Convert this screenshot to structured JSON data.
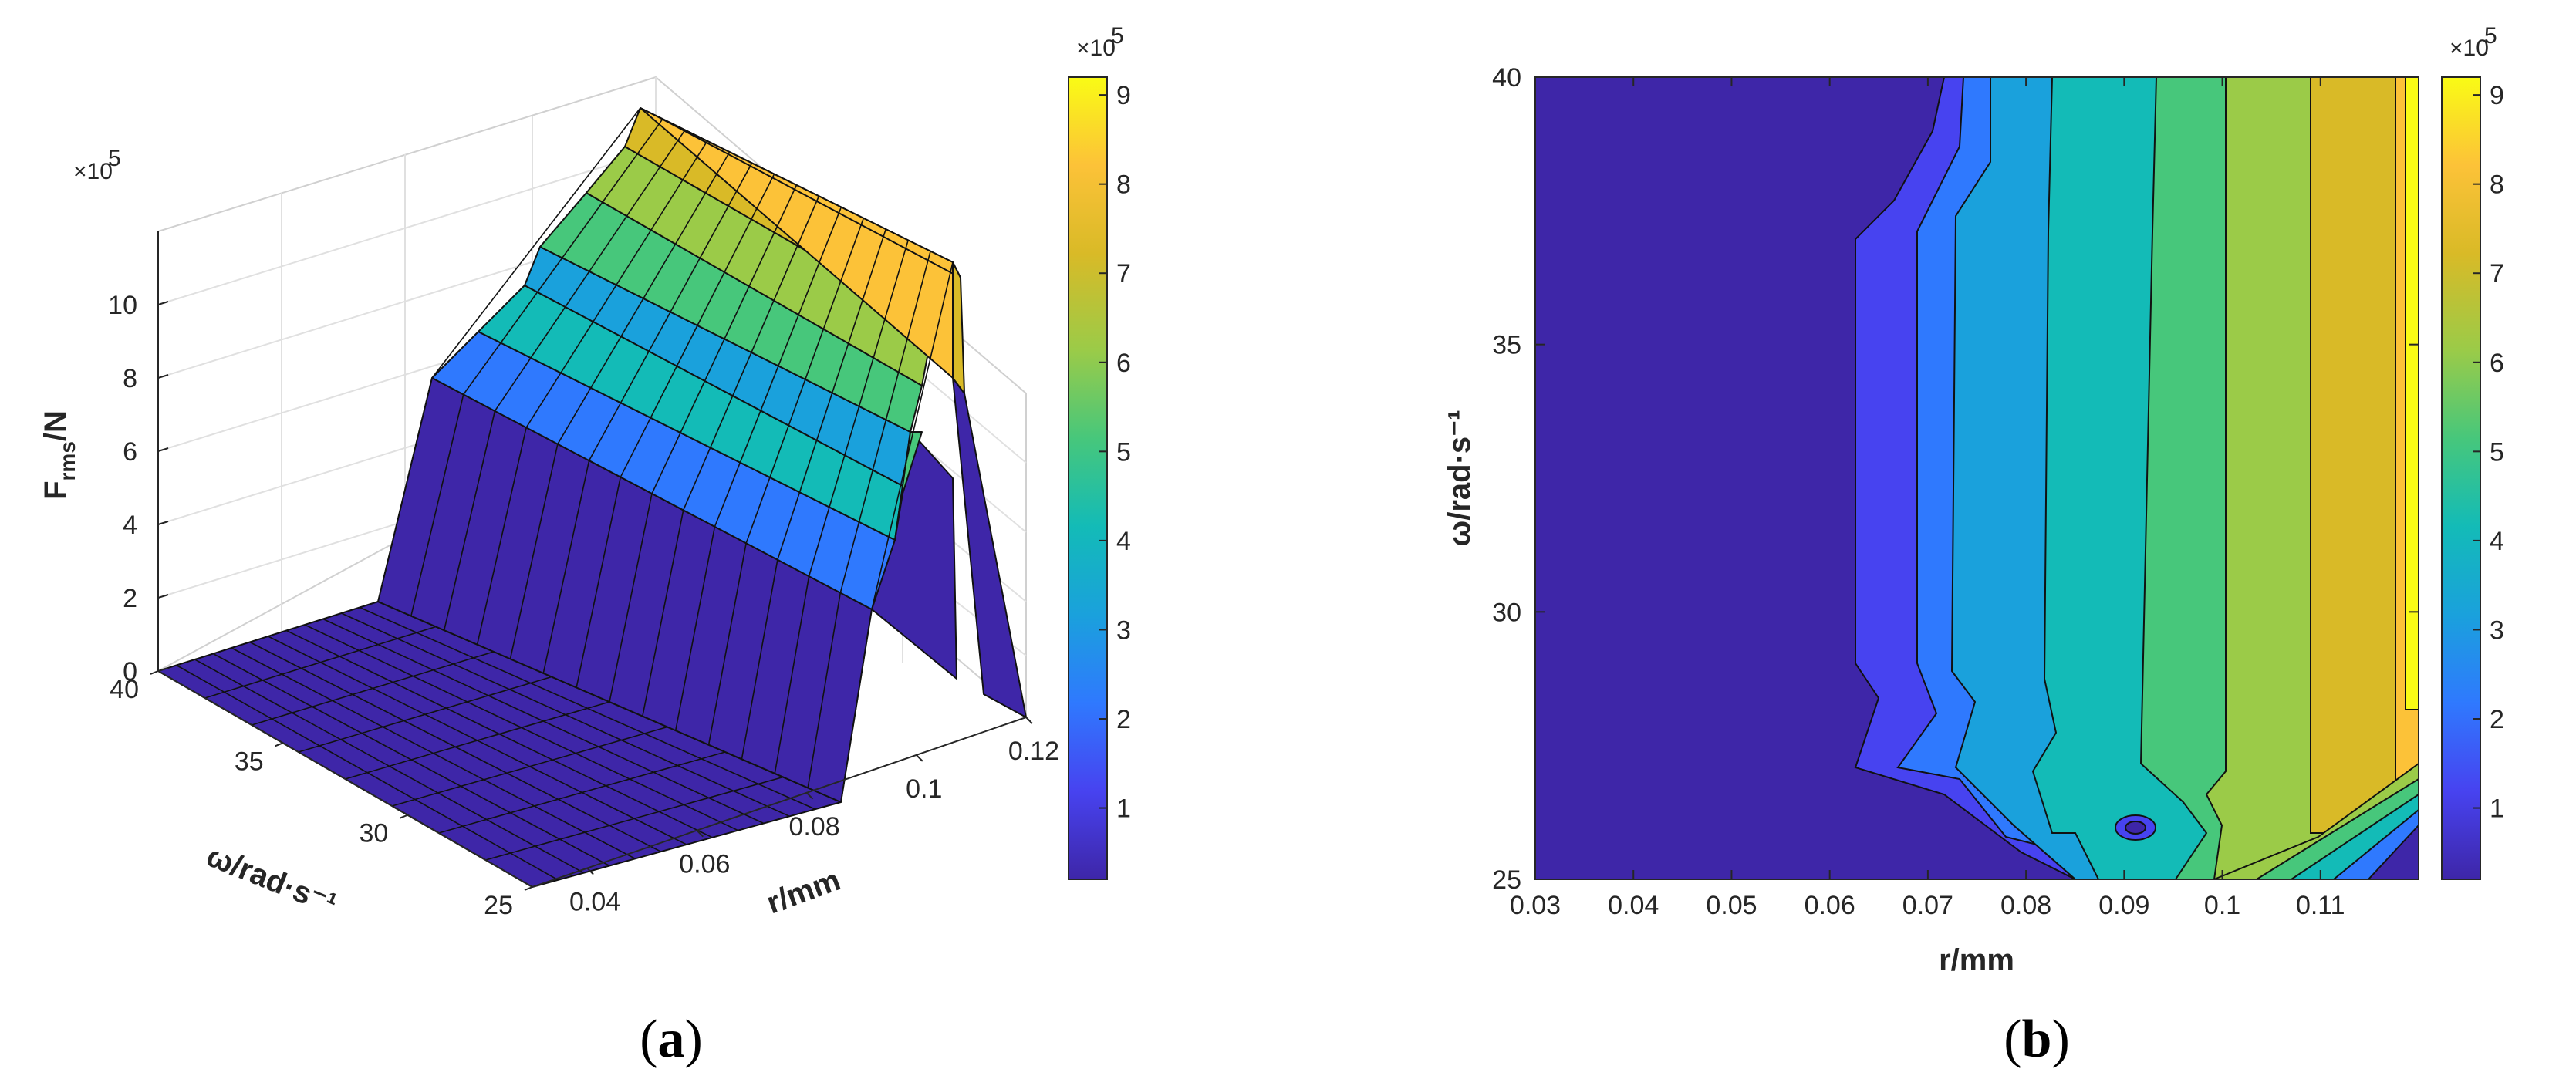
{
  "colormap": [
    "#3e26a8",
    "#4743f0",
    "#2f79fe",
    "#1aa1dc",
    "#13bbb7",
    "#47c77b",
    "#9bcb48",
    "#d9ba27",
    "#fcc238",
    "#f9fb15"
  ],
  "chart_data": [
    {
      "panel": "(a)",
      "type": "surface",
      "xlabel": "r/mm",
      "ylabel": "ω/rad·s⁻¹",
      "zlabel": "F",
      "zlabel_sub": "rms",
      "zlabel_tail": "/N",
      "z_exponent": "×10",
      "z_exponent_power": "5",
      "x_ticks": [
        "0.04",
        "0.06",
        "0.08",
        "0.1",
        "0.12"
      ],
      "y_ticks": [
        "40",
        "35",
        "30",
        "25"
      ],
      "z_ticks": [
        "0",
        "2",
        "4",
        "6",
        "8",
        "10"
      ],
      "xlim": [
        0.03,
        0.12
      ],
      "ylim": [
        25,
        40
      ],
      "zlim": [
        0,
        1000000
      ],
      "colorbar": {
        "ticks": [
          "1",
          "2",
          "3",
          "4",
          "5",
          "6",
          "7",
          "8",
          "9"
        ],
        "exponent": "×10",
        "exponent_power": "5",
        "range": [
          20000,
          920000
        ]
      },
      "approx_profile": {
        "r": [
          0.03,
          0.06,
          0.065,
          0.07,
          0.075,
          0.08,
          0.085,
          0.09,
          0.095,
          0.1,
          0.105,
          0.11,
          0.115,
          0.12
        ],
        "F_at_w40": [
          0,
          0,
          450000,
          450000,
          550000,
          650000,
          650000,
          750000,
          750000,
          850000,
          850000,
          920000,
          920000,
          920000
        ]
      }
    },
    {
      "panel": "(b)",
      "type": "contour",
      "xlabel": "r/mm",
      "ylabel": "ω/rad·s⁻¹",
      "x_ticks": [
        "0.03",
        "0.04",
        "0.05",
        "0.06",
        "0.07",
        "0.08",
        "0.09",
        "0.1",
        "0.11"
      ],
      "y_ticks": [
        "25",
        "30",
        "35",
        "40"
      ],
      "xlim": [
        0.03,
        0.12
      ],
      "ylim": [
        25,
        40
      ],
      "colorbar": {
        "ticks": [
          "1",
          "2",
          "3",
          "4",
          "5",
          "6",
          "7",
          "8",
          "9"
        ],
        "exponent": "×10",
        "exponent_power": "5",
        "range": [
          20000,
          920000
        ]
      },
      "contour_levels": [
        100000,
        200000,
        300000,
        400000,
        500000,
        600000,
        700000,
        800000,
        900000
      ]
    }
  ],
  "captions": {
    "a_open": "(",
    "a_letter": "a",
    "a_close": ")",
    "b_open": "(",
    "b_letter": "b",
    "b_close": ")"
  }
}
